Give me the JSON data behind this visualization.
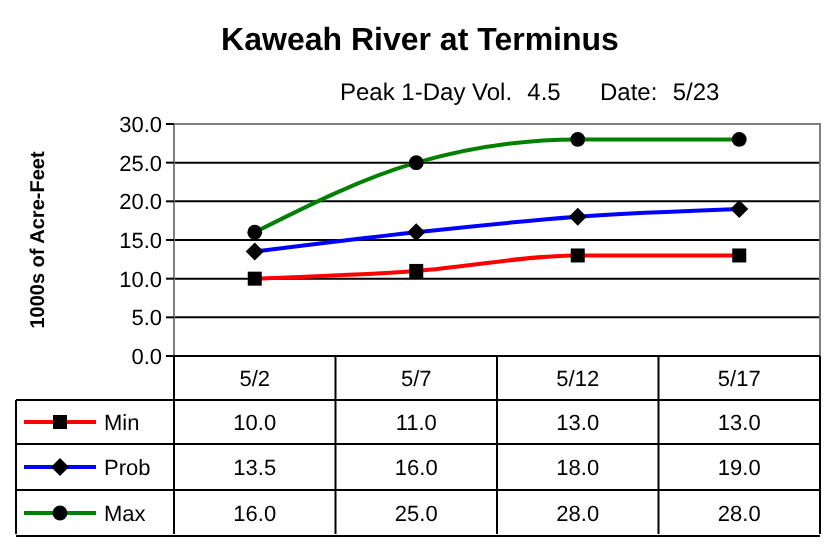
{
  "chart_data": {
    "type": "line",
    "title": "Kaweah River at Terminus",
    "annotations": [
      "Peak 1-Day Vol.",
      "4.5",
      "Date:",
      "5/23"
    ],
    "ylabel": "1000s of Acre-Feet",
    "categories": [
      "5/2",
      "5/7",
      "5/12",
      "5/17"
    ],
    "series": [
      {
        "name": "Min",
        "color": "#ff0000",
        "marker": "square",
        "values": [
          10.0,
          11.0,
          13.0,
          13.0
        ],
        "value_labels": [
          "10.0",
          "11.0",
          "13.0",
          "13.0"
        ]
      },
      {
        "name": "Prob",
        "color": "#0000ff",
        "marker": "diamond",
        "values": [
          13.5,
          16.0,
          18.0,
          19.0
        ],
        "value_labels": [
          "13.5",
          "16.0",
          "18.0",
          "19.0"
        ]
      },
      {
        "name": "Max",
        "color": "#008000",
        "marker": "circle",
        "values": [
          16.0,
          25.0,
          28.0,
          28.0
        ],
        "value_labels": [
          "16.0",
          "25.0",
          "28.0",
          "28.0"
        ]
      }
    ],
    "ylim": [
      0,
      30
    ],
    "yticks": [
      {
        "value": 0,
        "label": "0.0"
      },
      {
        "value": 5,
        "label": "5.0"
      },
      {
        "value": 10,
        "label": "10.0"
      },
      {
        "value": 15,
        "label": "15.0"
      },
      {
        "value": 20,
        "label": "20.0"
      },
      {
        "value": 25,
        "label": "25.0"
      },
      {
        "value": 30,
        "label": "30.0"
      }
    ],
    "grid": "y",
    "legend": "bottom",
    "line_style": "solid"
  }
}
